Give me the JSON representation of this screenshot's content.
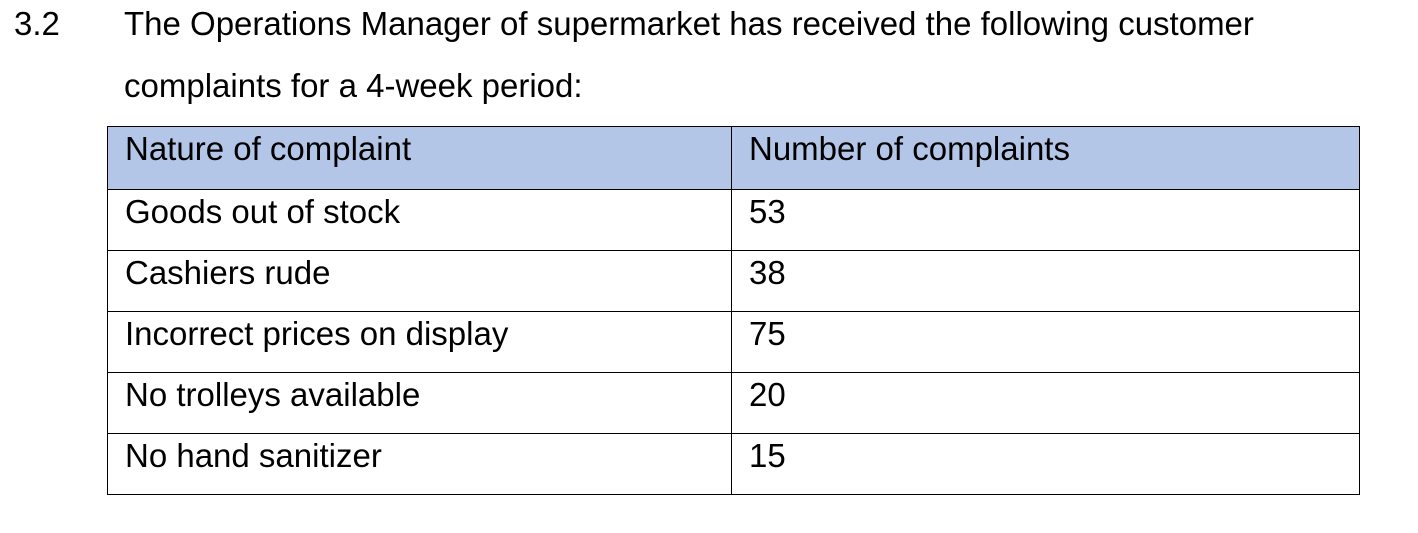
{
  "question": {
    "number": "3.2",
    "line1": "The Operations Manager of supermarket has received the following customer",
    "line2": "complaints for a 4-week period:"
  },
  "table": {
    "headers": [
      "Nature of complaint",
      "Number of complaints"
    ],
    "header_bg": "#b4c6e7",
    "rows": [
      [
        "Goods out of stock",
        "53"
      ],
      [
        "Cashiers rude",
        "38"
      ],
      [
        "Incorrect prices on display",
        "75"
      ],
      [
        "No trolleys available",
        "20"
      ],
      [
        "No hand sanitizer",
        "15"
      ]
    ]
  }
}
